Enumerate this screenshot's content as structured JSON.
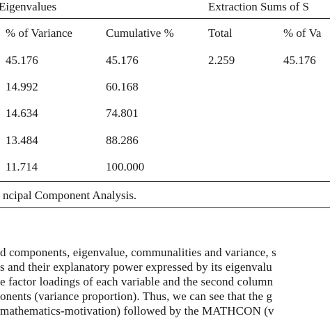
{
  "table": {
    "group_headers": [
      "Eigenvalues",
      "Extraction Sums of S"
    ],
    "columns": [
      "% of Variance",
      "Cumulative %",
      "Total",
      "% of Va"
    ],
    "rows": [
      [
        "45.176",
        "45.176",
        "2.259",
        "45.176"
      ],
      [
        "14.992",
        "60.168",
        "",
        ""
      ],
      [
        "14.634",
        "74.801",
        "",
        ""
      ],
      [
        "13.484",
        "88.286",
        "",
        ""
      ],
      [
        "11.714",
        "100.000",
        "",
        ""
      ]
    ],
    "note": "ncipal Component Analysis."
  },
  "body": {
    "lines": [
      "d components, eigenvalue, communalities and variance, s",
      "s and their explanatory power expressed by its eigenvalu",
      "e factor loadings of each variable and the second column",
      "onents (variance proportion). Thus, we can see that the g",
      " mathematics-motivation) followed by the MATHCON (v"
    ]
  }
}
